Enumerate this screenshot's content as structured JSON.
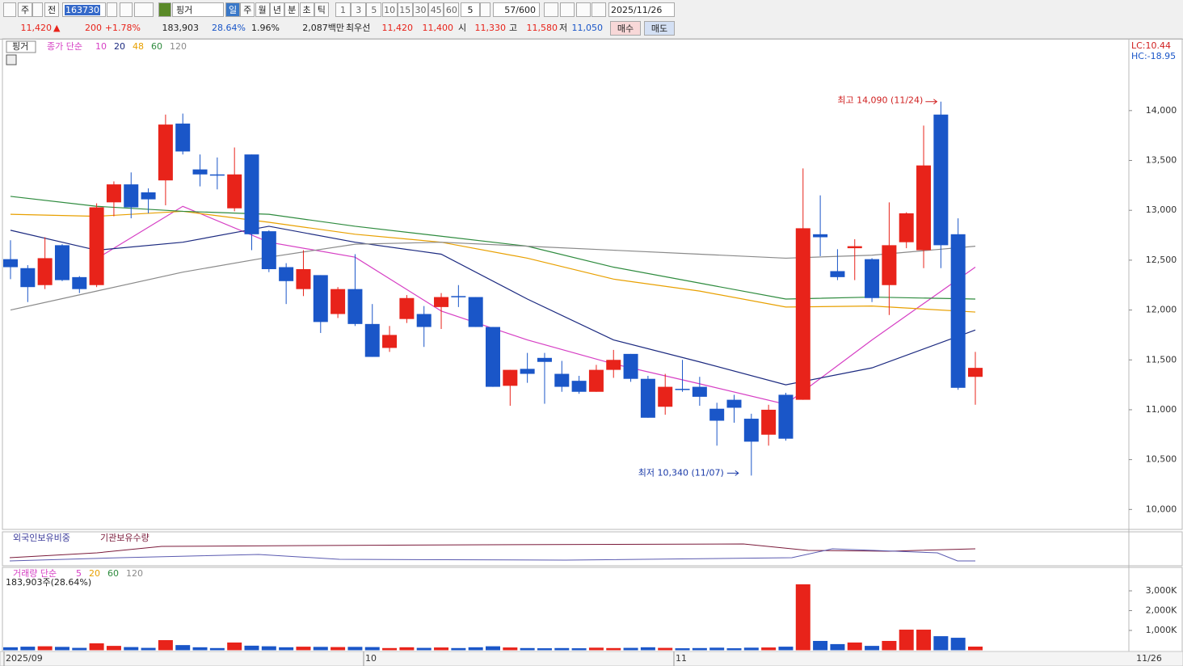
{
  "toolbar": {
    "period": "주",
    "ref": "전",
    "code": "163730",
    "name": "핑거",
    "units": [
      "일",
      "주",
      "월",
      "년",
      "분",
      "초",
      "틱"
    ],
    "minutes": [
      "1",
      "3",
      "5",
      "10",
      "15",
      "30",
      "45",
      "60"
    ],
    "count": "5",
    "range": "57/600",
    "date": "2025/11/26"
  },
  "quote": {
    "price": "11,420",
    "arrow": "▲",
    "change": "200",
    "rate": "+1.78%",
    "volume": "183,903",
    "turnover": "28.64%",
    "foreign": "1.96%",
    "amount": "2,087백만",
    "best_label": "최우선",
    "ask": "11,420",
    "bid": "11,400",
    "open_label": "시",
    "open": "11,330",
    "high_label": "고",
    "high": "11,580",
    "low_label": "저",
    "low": "11,050",
    "buy": "매수",
    "sell": "매도"
  },
  "chart_data": {
    "type": "candlestick",
    "title": "핑거",
    "up_color": "#e8231a",
    "down_color": "#1a56c8",
    "open": [
      12510,
      12420,
      12250,
      12650,
      12330,
      12250,
      13080,
      13260,
      13180,
      13300,
      13870,
      13410,
      13360,
      13020,
      13560,
      12790,
      12430,
      12210,
      12350,
      11960,
      12210,
      11860,
      11620,
      11910,
      11960,
      12030,
      12140,
      12130,
      11830,
      11240,
      11410,
      11520,
      11360,
      11290,
      11180,
      11400,
      11560,
      11310,
      11030,
      11210,
      11230,
      11010,
      11100,
      10910,
      10750,
      11150,
      11100,
      12760,
      12390,
      12620,
      12510,
      12250,
      12680,
      12600,
      13960,
      12760,
      11330
    ],
    "high": [
      12700,
      12450,
      12730,
      12660,
      12340,
      13070,
      13290,
      13380,
      13220,
      13960,
      13970,
      13560,
      13530,
      13630,
      13560,
      12800,
      12470,
      12600,
      12350,
      12230,
      12560,
      12060,
      11840,
      12150,
      12040,
      12170,
      12250,
      12130,
      11830,
      11400,
      11570,
      11570,
      11490,
      11340,
      11450,
      11600,
      11560,
      11340,
      11360,
      11500,
      11330,
      11070,
      11150,
      10960,
      11050,
      11170,
      13420,
      13150,
      12610,
      12710,
      12520,
      13080,
      12980,
      13850,
      14090,
      12920,
      11580
    ],
    "low": [
      12310,
      12080,
      12210,
      12290,
      12170,
      12230,
      12940,
      12920,
      12970,
      13050,
      13560,
      13240,
      13210,
      12990,
      12600,
      12380,
      12060,
      12140,
      11770,
      11920,
      11840,
      11530,
      11580,
      11870,
      11630,
      11810,
      12030,
      11830,
      11230,
      11040,
      11270,
      11060,
      11180,
      11160,
      11180,
      11320,
      11280,
      10920,
      10950,
      11180,
      11040,
      10640,
      10870,
      10340,
      10640,
      10690,
      11100,
      12540,
      12300,
      12300,
      12080,
      11950,
      12620,
      12420,
      12420,
      11200,
      11050
    ],
    "close": [
      12430,
      12230,
      12520,
      12300,
      12210,
      13030,
      13260,
      13030,
      13110,
      13860,
      13590,
      13360,
      13350,
      13360,
      12760,
      12410,
      12290,
      12410,
      11880,
      12210,
      11860,
      11530,
      11750,
      12120,
      11830,
      12130,
      12130,
      11830,
      11230,
      11400,
      11360,
      11480,
      11230,
      11180,
      11400,
      11500,
      11310,
      10920,
      11230,
      11200,
      11130,
      10890,
      11020,
      10680,
      11000,
      10710,
      12820,
      12730,
      12330,
      12640,
      12120,
      12650,
      12970,
      13450,
      12650,
      11220,
      11420
    ],
    "ma": {
      "label": "종가 단순",
      "x": [
        0,
        5,
        10,
        15,
        20,
        25,
        30,
        35,
        40,
        45,
        50,
        56
      ],
      "series": [
        {
          "name": "10",
          "color": "#d63fc4",
          "values": [
            null,
            12515,
            13040,
            12680,
            12530,
            11990,
            11700,
            11460,
            11260,
            11055,
            11700,
            12430
          ]
        },
        {
          "name": "20",
          "color": "#1c2a80",
          "values": [
            12800,
            12600,
            12680,
            12840,
            12680,
            12560,
            12110,
            11700,
            11480,
            11250,
            11420,
            11800
          ]
        },
        {
          "name": "48",
          "color": "#e8a000",
          "values": [
            12960,
            12940,
            12990,
            12880,
            12760,
            12680,
            12520,
            12310,
            12190,
            12030,
            12040,
            11980
          ]
        },
        {
          "name": "60",
          "color": "#2e8b3e",
          "values": [
            13140,
            13040,
            12990,
            12960,
            12840,
            12740,
            12640,
            12430,
            12270,
            12110,
            12130,
            12110
          ]
        },
        {
          "name": "120",
          "color": "#8a8a8a",
          "values": [
            12000,
            12190,
            12380,
            12530,
            12660,
            12680,
            12640,
            12600,
            12560,
            12520,
            12550,
            12640
          ]
        }
      ]
    },
    "ylim": [
      9800,
      14720
    ],
    "yticks": [
      {
        "value": 10000,
        "label": "10,000"
      },
      {
        "value": 10500,
        "label": "10,500"
      },
      {
        "value": 11000,
        "label": "11,000"
      },
      {
        "value": 11500,
        "label": "11,500"
      },
      {
        "value": 12000,
        "label": "12,000"
      },
      {
        "value": 12500,
        "label": "12,500"
      },
      {
        "value": 13000,
        "label": "13,000"
      },
      {
        "value": 13500,
        "label": "13,500"
      },
      {
        "value": 14000,
        "label": "14,000"
      }
    ],
    "lc": "LC:10.44",
    "hc": "HC:-18.95",
    "annotations": {
      "high": "최고 14,090 (11/24)",
      "low": "최저 10,340 (11/07)"
    },
    "x_labels": [
      "2025/09",
      "10",
      "11"
    ],
    "last_date": "11/26",
    "ownership": {
      "foreign": "외국인보유비중",
      "institution": "기관보유수량"
    },
    "volume": {
      "label": "거래량 단순",
      "summary": "183,903주(28.64%)",
      "ma_legend": [
        {
          "name": "5",
          "color": "#d63fc4"
        },
        {
          "name": "20",
          "color": "#e8a000"
        },
        {
          "name": "60",
          "color": "#2e8b3e"
        },
        {
          "name": "120",
          "color": "#8a8a8a"
        }
      ],
      "values": [
        150,
        180,
        200,
        170,
        120,
        350,
        220,
        160,
        120,
        510,
        260,
        150,
        110,
        390,
        230,
        200,
        150,
        180,
        170,
        160,
        170,
        160,
        110,
        150,
        120,
        140,
        110,
        150,
        200,
        140,
        110,
        100,
        110,
        100,
        130,
        110,
        120,
        150,
        120,
        100,
        110,
        130,
        100,
        130,
        140,
        180,
        3330,
        470,
        310,
        390,
        220,
        470,
        1040,
        1040,
        710,
        630,
        184
      ],
      "ylim": [
        0,
        3980
      ],
      "yticks": [
        {
          "value": 1000,
          "label": "1,000K"
        },
        {
          "value": 2000,
          "label": "2,000K"
        },
        {
          "value": 3000,
          "label": "3,000K"
        }
      ]
    }
  }
}
